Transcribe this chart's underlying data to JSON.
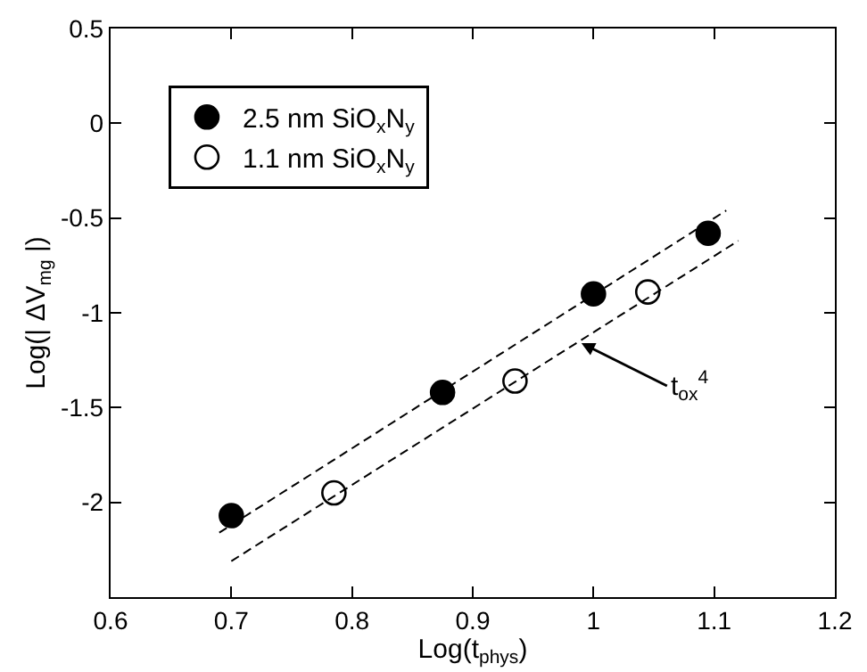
{
  "chart_data": {
    "type": "scatter",
    "xlabel": "Log(t$_{phys}$)",
    "ylabel": "Log(| ΔV$_{mg}$ |)",
    "xlim": [
      0.6,
      1.2
    ],
    "xticks": [
      0.6,
      0.7,
      0.8,
      0.9,
      1,
      1.1,
      1.2
    ],
    "ylim": [
      -2.5,
      0.5
    ],
    "yticks": [
      {
        "value": -2.5,
        "label": null
      },
      -2,
      -1.5,
      -1,
      -0.5,
      0,
      0.5
    ],
    "legend": "top left",
    "series": [
      {
        "name": "2.5 nm SiO$_{x}$N$_{y}$",
        "marker": "circle",
        "color": "#000000",
        "x": [
          0.7,
          0.875,
          1.0,
          1.095
        ],
        "values": [
          -2.07,
          -1.42,
          -0.9,
          -0.58
        ]
      },
      {
        "name": "1.1 nm SiO$_{x}$N$_{y}$",
        "marker": "circle",
        "color": "#ffffff",
        "x": [
          0.785,
          0.935,
          1.045
        ],
        "values": [
          -1.95,
          -1.36,
          -0.89
        ]
      },
      {
        "type": "line",
        "line_style": "dashed",
        "color": "#000000",
        "x": [
          0.69,
          1.11
        ],
        "values": [
          -2.16,
          -0.46
        ]
      },
      {
        "type": "line",
        "line_style": "dashed",
        "color": "#000000",
        "x": [
          0.7,
          1.12
        ],
        "values": [
          -2.31,
          -0.62
        ]
      }
    ],
    "annotations": [
      {
        "text": "t$_{ox}$$^{4}$",
        "x": 0.99,
        "y": -1.16
      }
    ]
  }
}
